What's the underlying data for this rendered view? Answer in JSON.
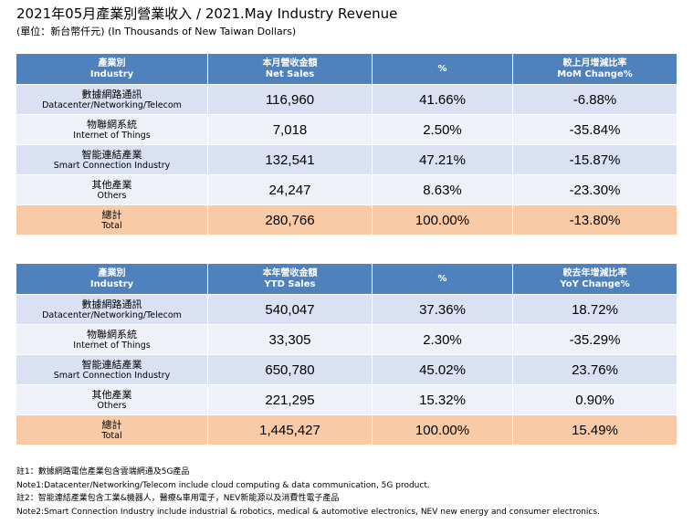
{
  "title": "2021年05月產業別營業收入 / 2021.May Industry Revenue",
  "subtitle": "(單位：新台幣仟元) (In Thousands of New Taiwan Dollars)",
  "monthly_table": {
    "headers": [
      {
        "zh": "產業別",
        "en": "Industry"
      },
      {
        "zh": "本月營收金額",
        "en": "Net Sales"
      },
      {
        "zh": "%",
        "en": ""
      },
      {
        "zh": "較上月增減比率",
        "en": "MoM Change%"
      }
    ],
    "rows": [
      {
        "zh": "數據網路通訊",
        "en": "Datacenter/Networking/Telecom",
        "sales": "116,960",
        "pct": "41.66%",
        "change": "-6.88%"
      },
      {
        "zh": "物聯網系統",
        "en": "Internet of Things",
        "sales": "7,018",
        "pct": "2.50%",
        "change": "-35.84%"
      },
      {
        "zh": "智能連結產業",
        "en": "Smart Connection Industry",
        "sales": "132,541",
        "pct": "47.21%",
        "change": "-15.87%"
      },
      {
        "zh": "其他產業",
        "en": "Others",
        "sales": "24,247",
        "pct": "8.63%",
        "change": "-23.30%"
      }
    ],
    "total": {
      "zh": "總計",
      "en": "Total",
      "sales": "280,766",
      "pct": "100.00%",
      "change": "-13.80%"
    }
  },
  "ytd_table": {
    "headers": [
      {
        "zh": "產業別",
        "en": "Industry"
      },
      {
        "zh": "本年營收金額",
        "en": "YTD Sales"
      },
      {
        "zh": "%",
        "en": ""
      },
      {
        "zh": "較去年增減比率",
        "en": "YoY Change%"
      }
    ],
    "rows": [
      {
        "zh": "數據網路通訊",
        "en": "Datacenter/Networking/Telecom",
        "sales": "540,047",
        "pct": "37.36%",
        "change": "18.72%"
      },
      {
        "zh": "物聯網系統",
        "en": "Internet of Things",
        "sales": "33,305",
        "pct": "2.30%",
        "change": "-35.29%"
      },
      {
        "zh": "智能連結產業",
        "en": "Smart Connection Industry",
        "sales": "650,780",
        "pct": "45.02%",
        "change": "23.76%"
      },
      {
        "zh": "其他產業",
        "en": "Others",
        "sales": "221,295",
        "pct": "15.32%",
        "change": "0.90%"
      }
    ],
    "total": {
      "zh": "總計",
      "en": "Total",
      "sales": "1,445,427",
      "pct": "100.00%",
      "change": "15.49%"
    }
  },
  "notes": [
    "註1：數據網路電信產業包含雲端網通及5G產品",
    "Note1:Datacenter/Networking/Telecom include cloud computing & data communication, 5G product.",
    "註2：智能連結產業包含工業&機器人，醫療&車用電子，NEV新能源以及消費性電子產品",
    "Note2:Smart Connection Industry include industrial & robotics, medical & automotive electronics, NEV new energy and consumer electronics."
  ],
  "colors": {
    "header": "#4f81bd",
    "row_odd": "#d9e1f2",
    "row_even": "#eef1f8",
    "total": "#f8cba6"
  }
}
